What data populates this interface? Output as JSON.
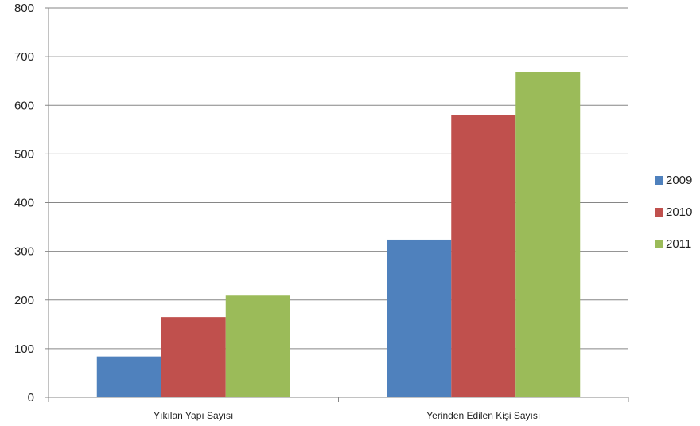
{
  "chart_data": {
    "type": "bar",
    "categories": [
      "Yıkılan Yapı Sayısı",
      "Yerinden Edilen Kişi Sayısı"
    ],
    "series": [
      {
        "name": "2009",
        "values": [
          84,
          324
        ],
        "color": "#4f81bd"
      },
      {
        "name": "2010",
        "values": [
          165,
          580
        ],
        "color": "#c0504d"
      },
      {
        "name": "2011",
        "values": [
          209,
          668
        ],
        "color": "#9bbb59"
      }
    ],
    "ylim": [
      0,
      800
    ],
    "yticks": [
      0,
      100,
      200,
      300,
      400,
      500,
      600,
      700,
      800
    ],
    "grid": true,
    "legend": "right"
  }
}
